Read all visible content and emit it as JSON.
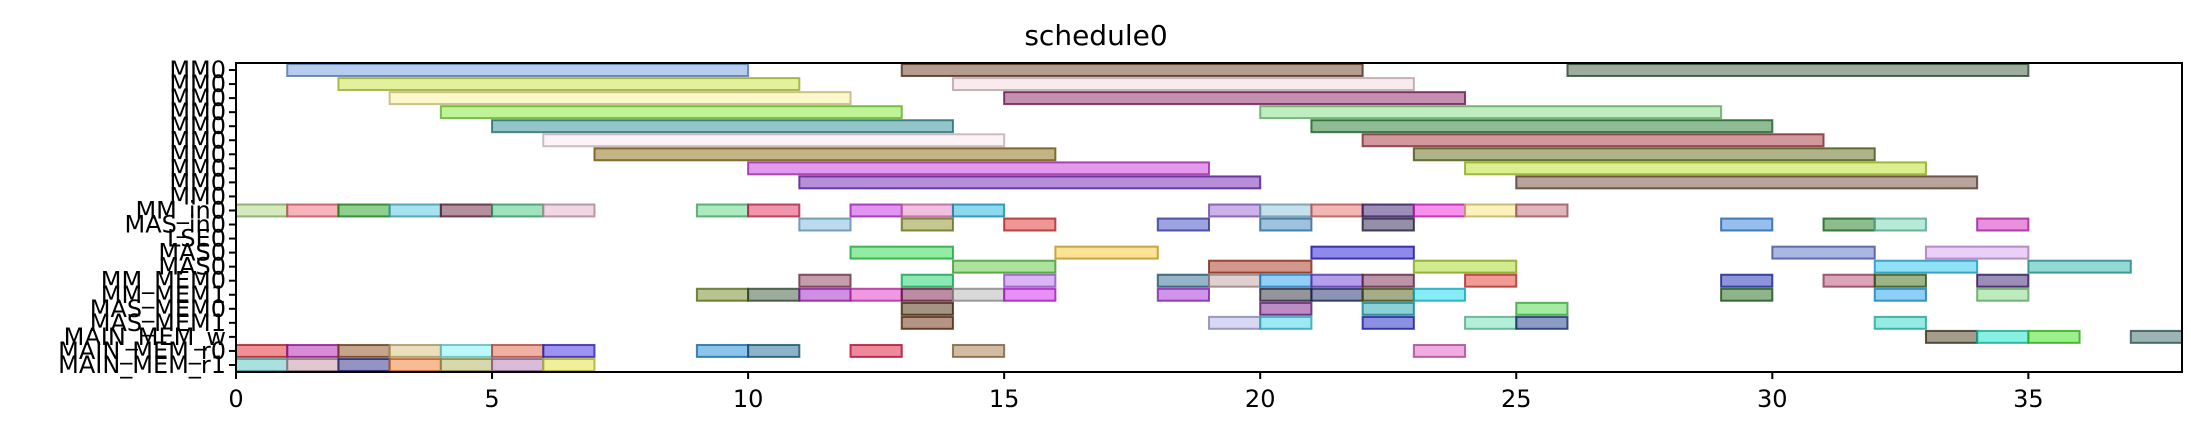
{
  "chart_data": {
    "type": "gantt",
    "title": "schedule0",
    "xlim": [
      0,
      38
    ],
    "x_ticks": [
      0,
      5,
      10,
      15,
      20,
      25,
      30,
      35
    ],
    "grid": false,
    "rows": [
      "MM0",
      "MM0",
      "MM0",
      "MM0",
      "MM0",
      "MM0",
      "MM0",
      "MM0",
      "MM0",
      "MM0",
      "MM_in0",
      "MAS_in0",
      "LSE0",
      "MAS0",
      "MAS0",
      "MM_MEM0",
      "MM_MEM1",
      "MAS_MEM0",
      "MAS_MEM1",
      "MAIN_MEM_w",
      "MAIN_MEM_r0",
      "MAIN_MEM_r1"
    ],
    "tasks": [
      {
        "row": 0,
        "start": 1,
        "end": 10,
        "color": "#6f9be0"
      },
      {
        "row": 0,
        "start": 13,
        "end": 22,
        "color": "#6b3a22"
      },
      {
        "row": 0,
        "start": 26,
        "end": 35,
        "color": "#3c5a3a"
      },
      {
        "row": 1,
        "start": 2,
        "end": 11,
        "color": "#c8e33a"
      },
      {
        "row": 1,
        "start": 14,
        "end": 23,
        "color": "#f3d7dc"
      },
      {
        "row": 2,
        "start": 3,
        "end": 12,
        "color": "#fbef9a"
      },
      {
        "row": 2,
        "start": 15,
        "end": 24,
        "color": "#8b1f63"
      },
      {
        "row": 3,
        "start": 4,
        "end": 13,
        "color": "#7ee832"
      },
      {
        "row": 3,
        "start": 20,
        "end": 29,
        "color": "#7fdc82"
      },
      {
        "row": 4,
        "start": 5,
        "end": 14,
        "color": "#2a8d94"
      },
      {
        "row": 4,
        "start": 21,
        "end": 30,
        "color": "#1f7a2c"
      },
      {
        "row": 5,
        "start": 6,
        "end": 15,
        "color": "#fbe8ef"
      },
      {
        "row": 5,
        "start": 22,
        "end": 31,
        "color": "#a3343c"
      },
      {
        "row": 6,
        "start": 7,
        "end": 16,
        "color": "#8a6a0c"
      },
      {
        "row": 6,
        "start": 23,
        "end": 32,
        "color": "#5f6a12"
      },
      {
        "row": 7,
        "start": 10,
        "end": 19,
        "color": "#c833d9"
      },
      {
        "row": 7,
        "start": 24,
        "end": 33,
        "color": "#b8de22"
      },
      {
        "row": 8,
        "start": 11,
        "end": 20,
        "color": "#6e1eb4"
      },
      {
        "row": 8,
        "start": 25,
        "end": 34,
        "color": "#6e4a3c"
      },
      {
        "row": 10,
        "start": 0,
        "end": 1,
        "color": "#a6d57a"
      },
      {
        "row": 10,
        "start": 1,
        "end": 2,
        "color": "#f46a78"
      },
      {
        "row": 10,
        "start": 2,
        "end": 3,
        "color": "#1fa21f"
      },
      {
        "row": 10,
        "start": 3,
        "end": 4,
        "color": "#4dc6e0"
      },
      {
        "row": 10,
        "start": 4,
        "end": 5,
        "color": "#6b2440"
      },
      {
        "row": 10,
        "start": 5,
        "end": 6,
        "color": "#3ec57e"
      },
      {
        "row": 10,
        "start": 6,
        "end": 7,
        "color": "#e4adc7"
      },
      {
        "row": 10,
        "start": 9,
        "end": 10,
        "color": "#57d37d"
      },
      {
        "row": 10,
        "start": 10,
        "end": 11,
        "color": "#e12d5a"
      },
      {
        "row": 10,
        "start": 12,
        "end": 13,
        "color": "#c827e7"
      },
      {
        "row": 10,
        "start": 13,
        "end": 14,
        "color": "#e880c4"
      },
      {
        "row": 10,
        "start": 14,
        "end": 15,
        "color": "#1ab2e0"
      },
      {
        "row": 10,
        "start": 19,
        "end": 20,
        "color": "#9a63d6"
      },
      {
        "row": 10,
        "start": 20,
        "end": 21,
        "color": "#8ac4dc"
      },
      {
        "row": 10,
        "start": 21,
        "end": 22,
        "color": "#ea6c6c"
      },
      {
        "row": 10,
        "start": 22,
        "end": 23,
        "color": "#3b1c74"
      },
      {
        "row": 10,
        "start": 23,
        "end": 24,
        "color": "#f21ddb"
      },
      {
        "row": 10,
        "start": 24,
        "end": 25,
        "color": "#fbe57a"
      },
      {
        "row": 10,
        "start": 25,
        "end": 26,
        "color": "#c46b7a"
      },
      {
        "row": 11,
        "start": 11,
        "end": 12,
        "color": "#7bb7dd"
      },
      {
        "row": 11,
        "start": 13,
        "end": 14,
        "color": "#8a8f22"
      },
      {
        "row": 11,
        "start": 15,
        "end": 16,
        "color": "#e22d2d"
      },
      {
        "row": 11,
        "start": 18,
        "end": 19,
        "color": "#3b46c2"
      },
      {
        "row": 11,
        "start": 20,
        "end": 21,
        "color": "#3a85c2"
      },
      {
        "row": 11,
        "start": 22,
        "end": 23,
        "color": "#2a1f4a"
      },
      {
        "row": 11,
        "start": 29,
        "end": 30,
        "color": "#2d7fe0"
      },
      {
        "row": 11,
        "start": 31,
        "end": 32,
        "color": "#1f7a1f"
      },
      {
        "row": 11,
        "start": 32,
        "end": 33,
        "color": "#6fd8b0"
      },
      {
        "row": 11,
        "start": 34,
        "end": 35,
        "color": "#d422c0"
      },
      {
        "row": 13,
        "start": 12,
        "end": 14,
        "color": "#27d84a"
      },
      {
        "row": 13,
        "start": 16,
        "end": 18,
        "color": "#f7c52c"
      },
      {
        "row": 13,
        "start": 21,
        "end": 23,
        "color": "#1f14d4"
      },
      {
        "row": 13,
        "start": 30,
        "end": 32,
        "color": "#5a6dc8"
      },
      {
        "row": 13,
        "start": 33,
        "end": 35,
        "color": "#d99ff2"
      },
      {
        "row": 14,
        "start": 14,
        "end": 16,
        "color": "#58c83a"
      },
      {
        "row": 14,
        "start": 19,
        "end": 21,
        "color": "#a83218"
      },
      {
        "row": 14,
        "start": 23,
        "end": 25,
        "color": "#a7d81f"
      },
      {
        "row": 14,
        "start": 32,
        "end": 34,
        "color": "#1fc3f2"
      },
      {
        "row": 14,
        "start": 35,
        "end": 37,
        "color": "#27b3ab"
      },
      {
        "row": 15,
        "start": 11,
        "end": 12,
        "color": "#8c3a5a"
      },
      {
        "row": 15,
        "start": 13,
        "end": 14,
        "color": "#1bd46a"
      },
      {
        "row": 15,
        "start": 15,
        "end": 16,
        "color": "#b86cf2"
      },
      {
        "row": 15,
        "start": 18,
        "end": 19,
        "color": "#2a6a92"
      },
      {
        "row": 15,
        "start": 19,
        "end": 20,
        "color": "#c2a2a2"
      },
      {
        "row": 15,
        "start": 20,
        "end": 21,
        "color": "#25a0f0"
      },
      {
        "row": 15,
        "start": 21,
        "end": 22,
        "color": "#6a3fd8"
      },
      {
        "row": 15,
        "start": 22,
        "end": 23,
        "color": "#7a2a52"
      },
      {
        "row": 15,
        "start": 24,
        "end": 25,
        "color": "#e2382e"
      },
      {
        "row": 15,
        "start": 29,
        "end": 30,
        "color": "#1a2bb8"
      },
      {
        "row": 15,
        "start": 31,
        "end": 32,
        "color": "#b84a72"
      },
      {
        "row": 15,
        "start": 32,
        "end": 33,
        "color": "#3a6a12"
      },
      {
        "row": 15,
        "start": 34,
        "end": 35,
        "color": "#3a1a72"
      },
      {
        "row": 16,
        "start": 9,
        "end": 10,
        "color": "#6f8a1f"
      },
      {
        "row": 16,
        "start": 10,
        "end": 11,
        "color": "#3a5a3a"
      },
      {
        "row": 16,
        "start": 11,
        "end": 12,
        "color": "#a21fc8"
      },
      {
        "row": 16,
        "start": 12,
        "end": 13,
        "color": "#e232c8"
      },
      {
        "row": 16,
        "start": 13,
        "end": 14,
        "color": "#7a1a4a"
      },
      {
        "row": 16,
        "start": 14,
        "end": 15,
        "color": "#b2b2b2"
      },
      {
        "row": 16,
        "start": 15,
        "end": 16,
        "color": "#d21ff2"
      },
      {
        "row": 16,
        "start": 18,
        "end": 19,
        "color": "#a22ad8"
      },
      {
        "row": 16,
        "start": 20,
        "end": 21,
        "color": "#2a2a3a"
      },
      {
        "row": 16,
        "start": 21,
        "end": 22,
        "color": "#1a2a6a"
      },
      {
        "row": 16,
        "start": 22,
        "end": 23,
        "color": "#4a5a12"
      },
      {
        "row": 16,
        "start": 23,
        "end": 24,
        "color": "#12d8f2"
      },
      {
        "row": 16,
        "start": 29,
        "end": 30,
        "color": "#1f6a1a"
      },
      {
        "row": 16,
        "start": 32,
        "end": 33,
        "color": "#1aa2f2"
      },
      {
        "row": 16,
        "start": 34,
        "end": 35,
        "color": "#7ad87a"
      },
      {
        "row": 17,
        "start": 13,
        "end": 14,
        "color": "#4a2a0a"
      },
      {
        "row": 17,
        "start": 20,
        "end": 21,
        "color": "#7a1a8a"
      },
      {
        "row": 17,
        "start": 22,
        "end": 23,
        "color": "#1aa2b2"
      },
      {
        "row": 17,
        "start": 25,
        "end": 26,
        "color": "#4ad84a"
      },
      {
        "row": 18,
        "start": 13,
        "end": 14,
        "color": "#6a2a0a"
      },
      {
        "row": 18,
        "start": 19,
        "end": 20,
        "color": "#b2b2ea"
      },
      {
        "row": 18,
        "start": 20,
        "end": 21,
        "color": "#3ad2ea"
      },
      {
        "row": 18,
        "start": 22,
        "end": 23,
        "color": "#1a22c8"
      },
      {
        "row": 18,
        "start": 24,
        "end": 25,
        "color": "#6ae2b2"
      },
      {
        "row": 18,
        "start": 25,
        "end": 26,
        "color": "#1a3a8a"
      },
      {
        "row": 18,
        "start": 32,
        "end": 33,
        "color": "#2ad8c8"
      },
      {
        "row": 19,
        "start": 33,
        "end": 34,
        "color": "#4a3a1a"
      },
      {
        "row": 19,
        "start": 34,
        "end": 35,
        "color": "#12e2c2"
      },
      {
        "row": 19,
        "start": 35,
        "end": 36,
        "color": "#3ae21a"
      },
      {
        "row": 19,
        "start": 37,
        "end": 38,
        "color": "#3a6a6a"
      },
      {
        "row": 20,
        "start": 0,
        "end": 1,
        "color": "#e2222a"
      },
      {
        "row": 20,
        "start": 1,
        "end": 2,
        "color": "#b21ab2"
      },
      {
        "row": 20,
        "start": 2,
        "end": 3,
        "color": "#8a4a1a"
      },
      {
        "row": 20,
        "start": 3,
        "end": 4,
        "color": "#d8c27a"
      },
      {
        "row": 20,
        "start": 4,
        "end": 5,
        "color": "#7af2f2"
      },
      {
        "row": 20,
        "start": 5,
        "end": 6,
        "color": "#e2624a"
      },
      {
        "row": 20,
        "start": 6,
        "end": 7,
        "color": "#3a2ae2"
      },
      {
        "row": 20,
        "start": 9,
        "end": 10,
        "color": "#1a8ad8"
      },
      {
        "row": 20,
        "start": 10,
        "end": 11,
        "color": "#1a6a92"
      },
      {
        "row": 20,
        "start": 12,
        "end": 13,
        "color": "#e2123a"
      },
      {
        "row": 20,
        "start": 14,
        "end": 15,
        "color": "#a27a4a"
      },
      {
        "row": 20,
        "start": 23,
        "end": 24,
        "color": "#e25ac2"
      },
      {
        "row": 21,
        "start": 0,
        "end": 1,
        "color": "#5ac2c2"
      },
      {
        "row": 21,
        "start": 1,
        "end": 2,
        "color": "#c292a2"
      },
      {
        "row": 21,
        "start": 2,
        "end": 3,
        "color": "#2a2a8a"
      },
      {
        "row": 21,
        "start": 3,
        "end": 4,
        "color": "#f27a2a"
      },
      {
        "row": 21,
        "start": 4,
        "end": 5,
        "color": "#b2b25a"
      },
      {
        "row": 21,
        "start": 5,
        "end": 6,
        "color": "#b27ab2"
      },
      {
        "row": 21,
        "start": 6,
        "end": 7,
        "color": "#e2e23a"
      }
    ]
  }
}
